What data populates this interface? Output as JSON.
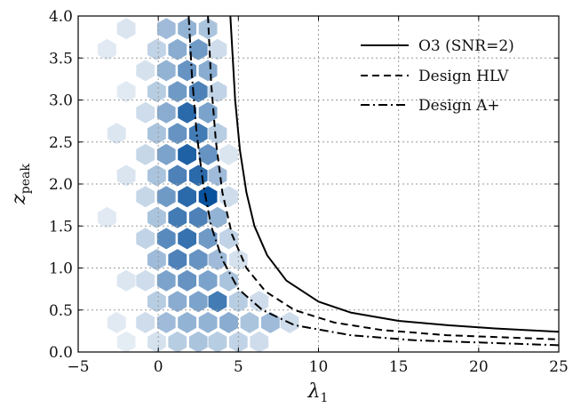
{
  "chart_data": {
    "type": "line",
    "title": "",
    "xlabel": "λ",
    "xlabel_sub": "1",
    "ylabel": "z",
    "ylabel_sub": "peak",
    "xlim": [
      -5,
      25
    ],
    "ylim": [
      0,
      4
    ],
    "xticks": [
      -5,
      0,
      5,
      10,
      15,
      20,
      25
    ],
    "xtick_labels": [
      "−5",
      "0",
      "5",
      "10",
      "15",
      "20",
      "25"
    ],
    "yticks": [
      0,
      0.5,
      1,
      1.5,
      2,
      2.5,
      3,
      3.5,
      4
    ],
    "ytick_labels": [
      "0.0",
      "0.5",
      "1.0",
      "1.5",
      "2.0",
      "2.5",
      "3.0",
      "3.5",
      "4.0"
    ],
    "grid": true,
    "legend_position": "top-right",
    "series": [
      {
        "name": "O3 (SNR=2)",
        "style": "solid",
        "color": "#000000",
        "x": [
          4.5,
          4.8,
          5.1,
          5.5,
          6.0,
          6.8,
          8.0,
          10.0,
          12.0,
          15.0,
          18.0,
          21.0,
          25.0
        ],
        "y": [
          4.0,
          3.0,
          2.4,
          1.9,
          1.5,
          1.15,
          0.85,
          0.6,
          0.47,
          0.37,
          0.32,
          0.28,
          0.24
        ]
      },
      {
        "name": "Design HLV",
        "style": "dashed",
        "color": "#000000",
        "x": [
          3.1,
          3.3,
          3.6,
          4.0,
          4.6,
          5.5,
          6.7,
          8.5,
          11.0,
          14.0,
          18.0,
          25.0
        ],
        "y": [
          4.0,
          3.2,
          2.5,
          1.9,
          1.4,
          1.0,
          0.72,
          0.5,
          0.35,
          0.26,
          0.2,
          0.15
        ]
      },
      {
        "name": "Design A+",
        "style": "dashdot",
        "color": "#000000",
        "x": [
          1.9,
          2.1,
          2.4,
          2.8,
          3.3,
          4.0,
          5.0,
          6.5,
          8.5,
          12.0,
          16.0,
          25.0
        ],
        "y": [
          4.0,
          3.3,
          2.6,
          2.0,
          1.5,
          1.1,
          0.75,
          0.5,
          0.32,
          0.2,
          0.14,
          0.08
        ]
      }
    ],
    "hexbin": {
      "color": "#08519c",
      "cells": [
        {
          "x": 0.5,
          "y": 3.85,
          "w": 0.35
        },
        {
          "x": 1.8,
          "y": 3.85,
          "w": 0.4
        },
        {
          "x": 3.1,
          "y": 3.85,
          "w": 0.3
        },
        {
          "x": -2.0,
          "y": 3.85,
          "w": 0.1
        },
        {
          "x": 1.2,
          "y": 3.6,
          "w": 0.45
        },
        {
          "x": 2.5,
          "y": 3.6,
          "w": 0.55
        },
        {
          "x": -0.1,
          "y": 3.6,
          "w": 0.2
        },
        {
          "x": 3.7,
          "y": 3.6,
          "w": 0.15
        },
        {
          "x": -3.2,
          "y": 3.6,
          "w": 0.06
        },
        {
          "x": 0.5,
          "y": 3.35,
          "w": 0.4
        },
        {
          "x": 1.8,
          "y": 3.35,
          "w": 0.6
        },
        {
          "x": 3.1,
          "y": 3.35,
          "w": 0.45
        },
        {
          "x": -0.8,
          "y": 3.35,
          "w": 0.12
        },
        {
          "x": 1.2,
          "y": 3.1,
          "w": 0.55
        },
        {
          "x": 2.5,
          "y": 3.1,
          "w": 0.7
        },
        {
          "x": -0.1,
          "y": 3.1,
          "w": 0.25
        },
        {
          "x": 3.7,
          "y": 3.1,
          "w": 0.2
        },
        {
          "x": -2.0,
          "y": 3.1,
          "w": 0.06
        },
        {
          "x": 0.5,
          "y": 2.85,
          "w": 0.45
        },
        {
          "x": 1.8,
          "y": 2.85,
          "w": 0.85
        },
        {
          "x": 3.1,
          "y": 2.85,
          "w": 0.5
        },
        {
          "x": -0.8,
          "y": 2.85,
          "w": 0.15
        },
        {
          "x": 1.2,
          "y": 2.6,
          "w": 0.6
        },
        {
          "x": 2.5,
          "y": 2.6,
          "w": 0.75
        },
        {
          "x": -0.1,
          "y": 2.6,
          "w": 0.3
        },
        {
          "x": 3.7,
          "y": 2.6,
          "w": 0.25
        },
        {
          "x": -2.6,
          "y": 2.6,
          "w": 0.08
        },
        {
          "x": 0.5,
          "y": 2.35,
          "w": 0.5
        },
        {
          "x": 1.8,
          "y": 2.35,
          "w": 0.9
        },
        {
          "x": 3.1,
          "y": 2.35,
          "w": 0.6
        },
        {
          "x": -0.8,
          "y": 2.35,
          "w": 0.18
        },
        {
          "x": 4.4,
          "y": 2.35,
          "w": 0.1
        },
        {
          "x": 1.2,
          "y": 2.1,
          "w": 0.7
        },
        {
          "x": 2.5,
          "y": 2.1,
          "w": 0.85
        },
        {
          "x": -0.1,
          "y": 2.1,
          "w": 0.3
        },
        {
          "x": 3.7,
          "y": 2.1,
          "w": 0.35
        },
        {
          "x": -2.0,
          "y": 2.1,
          "w": 0.1
        },
        {
          "x": 0.5,
          "y": 1.85,
          "w": 0.55
        },
        {
          "x": 1.8,
          "y": 1.85,
          "w": 0.85
        },
        {
          "x": 3.1,
          "y": 1.85,
          "w": 1.0
        },
        {
          "x": -0.8,
          "y": 1.85,
          "w": 0.18
        },
        {
          "x": 4.4,
          "y": 1.85,
          "w": 0.15
        },
        {
          "x": 1.2,
          "y": 1.6,
          "w": 0.75
        },
        {
          "x": 2.5,
          "y": 1.6,
          "w": 0.7
        },
        {
          "x": -0.1,
          "y": 1.6,
          "w": 0.3
        },
        {
          "x": 3.7,
          "y": 1.6,
          "w": 0.4
        },
        {
          "x": -3.2,
          "y": 1.6,
          "w": 0.06
        },
        {
          "x": 0.5,
          "y": 1.35,
          "w": 0.65
        },
        {
          "x": 1.8,
          "y": 1.35,
          "w": 0.8
        },
        {
          "x": 3.1,
          "y": 1.35,
          "w": 0.55
        },
        {
          "x": -0.8,
          "y": 1.35,
          "w": 0.2
        },
        {
          "x": 4.4,
          "y": 1.35,
          "w": 0.2
        },
        {
          "x": 1.2,
          "y": 1.1,
          "w": 0.7
        },
        {
          "x": 2.5,
          "y": 1.1,
          "w": 0.6
        },
        {
          "x": -0.1,
          "y": 1.1,
          "w": 0.35
        },
        {
          "x": 3.7,
          "y": 1.1,
          "w": 0.35
        },
        {
          "x": 5.0,
          "y": 1.1,
          "w": 0.12
        },
        {
          "x": 0.5,
          "y": 0.85,
          "w": 0.5
        },
        {
          "x": 1.8,
          "y": 0.85,
          "w": 0.6
        },
        {
          "x": 3.1,
          "y": 0.85,
          "w": 0.5
        },
        {
          "x": -0.8,
          "y": 0.85,
          "w": 0.15
        },
        {
          "x": 4.4,
          "y": 0.85,
          "w": 0.3
        },
        {
          "x": -2.0,
          "y": 0.85,
          "w": 0.08
        },
        {
          "x": 1.2,
          "y": 0.6,
          "w": 0.45
        },
        {
          "x": 2.5,
          "y": 0.6,
          "w": 0.5
        },
        {
          "x": 3.7,
          "y": 0.6,
          "w": 0.75
        },
        {
          "x": -0.1,
          "y": 0.6,
          "w": 0.25
        },
        {
          "x": 5.0,
          "y": 0.6,
          "w": 0.25
        },
        {
          "x": 6.3,
          "y": 0.6,
          "w": 0.15
        },
        {
          "x": 0.5,
          "y": 0.35,
          "w": 0.35
        },
        {
          "x": 1.8,
          "y": 0.35,
          "w": 0.4
        },
        {
          "x": 3.1,
          "y": 0.35,
          "w": 0.4
        },
        {
          "x": 4.4,
          "y": 0.35,
          "w": 0.45
        },
        {
          "x": 5.7,
          "y": 0.35,
          "w": 0.3
        },
        {
          "x": 7.0,
          "y": 0.35,
          "w": 0.35
        },
        {
          "x": 8.2,
          "y": 0.35,
          "w": 0.15
        },
        {
          "x": -0.8,
          "y": 0.35,
          "w": 0.15
        },
        {
          "x": -2.6,
          "y": 0.35,
          "w": 0.06
        },
        {
          "x": 1.2,
          "y": 0.12,
          "w": 0.25
        },
        {
          "x": 2.5,
          "y": 0.12,
          "w": 0.3
        },
        {
          "x": 3.7,
          "y": 0.12,
          "w": 0.25
        },
        {
          "x": 5.0,
          "y": 0.12,
          "w": 0.2
        },
        {
          "x": 6.3,
          "y": 0.12,
          "w": 0.15
        },
        {
          "x": -0.1,
          "y": 0.12,
          "w": 0.12
        },
        {
          "x": -2.0,
          "y": 0.12,
          "w": 0.05
        }
      ]
    }
  }
}
